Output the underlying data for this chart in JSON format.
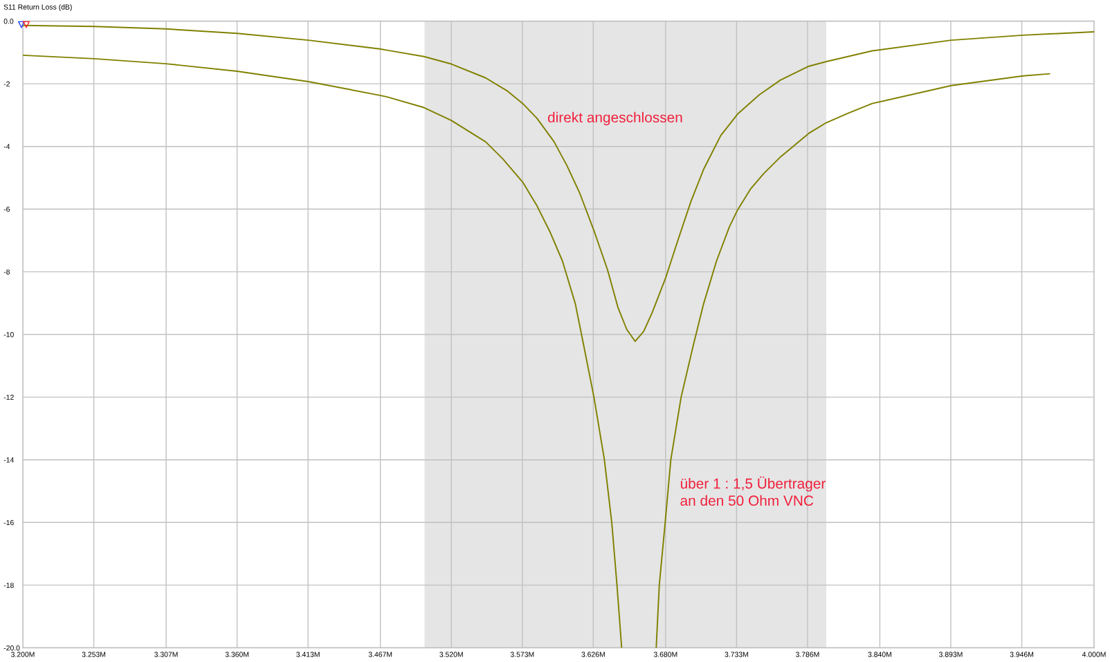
{
  "chart_data": {
    "type": "line",
    "ylabel": "S11 Return Loss (dB)",
    "xlim": [
      3.2,
      4.0
    ],
    "xticks": [
      {
        "value": 3.2,
        "label": "3.200M"
      },
      {
        "value": 3.253,
        "label": "3.253M"
      },
      {
        "value": 3.307,
        "label": "3.307M"
      },
      {
        "value": 3.36,
        "label": "3.360M"
      },
      {
        "value": 3.413,
        "label": "3.413M"
      },
      {
        "value": 3.467,
        "label": "3.467M"
      },
      {
        "value": 3.52,
        "label": "3.520M"
      },
      {
        "value": 3.573,
        "label": "3.573M"
      },
      {
        "value": 3.626,
        "label": "3.626M"
      },
      {
        "value": 3.68,
        "label": "3.680M"
      },
      {
        "value": 3.733,
        "label": "3.733M"
      },
      {
        "value": 3.786,
        "label": "3.786M"
      },
      {
        "value": 3.84,
        "label": "3.840M"
      },
      {
        "value": 3.893,
        "label": "3.893M"
      },
      {
        "value": 3.946,
        "label": "3.946M"
      },
      {
        "value": 4.0,
        "label": "4.000M"
      }
    ],
    "ylim": [
      -20,
      0
    ],
    "yticks": [
      {
        "value": 0,
        "label": "0.0"
      },
      -2,
      -4,
      -6,
      -8,
      -10,
      -12,
      -14,
      -16,
      -18,
      {
        "value": -20,
        "label": "-20.0"
      }
    ],
    "grid": true,
    "bands": [
      {
        "axis": "x",
        "from": 3.5,
        "to": 3.8,
        "color": "#e5e5e5"
      }
    ],
    "series": [
      {
        "color": "#808000",
        "x": [
          3.2,
          3.2533,
          3.3067,
          3.36,
          3.4133,
          3.4667,
          3.4721,
          3.4996,
          3.52,
          3.5455,
          3.5615,
          3.5733,
          3.5839,
          3.5967,
          3.6062,
          3.6158,
          3.6267,
          3.6366,
          3.6446,
          3.651,
          3.6573,
          3.6637,
          3.6701,
          3.68,
          3.6893,
          3.6989,
          3.7084,
          3.7212,
          3.7337,
          3.75,
          3.7659,
          3.787,
          3.8001,
          3.8343,
          3.8932,
          3.9469,
          4.0
        ],
        "values": [
          -0.14,
          -0.17,
          -0.25,
          -0.39,
          -0.61,
          -0.89,
          -0.93,
          -1.13,
          -1.37,
          -1.81,
          -2.22,
          -2.63,
          -3.1,
          -3.85,
          -4.6,
          -5.48,
          -6.71,
          -7.93,
          -9.16,
          -9.84,
          -10.22,
          -9.9,
          -9.29,
          -8.2,
          -6.98,
          -5.76,
          -4.73,
          -3.65,
          -2.97,
          -2.35,
          -1.88,
          -1.44,
          -1.29,
          -0.95,
          -0.61,
          -0.45,
          -0.34
        ]
      },
      {
        "color": "#808000",
        "x": [
          3.2,
          3.2533,
          3.3067,
          3.36,
          3.4133,
          3.4667,
          3.4721,
          3.4996,
          3.52,
          3.5455,
          3.5583,
          3.5733,
          3.5839,
          3.5935,
          3.603,
          3.6126,
          3.619,
          3.6265,
          3.6343,
          3.6398,
          3.6437,
          3.6472,
          3.66,
          3.673,
          3.6753,
          3.6797,
          3.6839,
          3.6916,
          3.7005,
          3.7084,
          3.718,
          3.7276,
          3.7337,
          3.7436,
          3.7532,
          3.7659,
          3.787,
          3.8001,
          3.817,
          3.8343,
          3.8932,
          3.9469,
          3.9668
        ],
        "values": [
          -1.09,
          -1.2,
          -1.36,
          -1.6,
          -1.93,
          -2.37,
          -2.42,
          -2.76,
          -3.17,
          -3.85,
          -4.39,
          -5.14,
          -5.89,
          -6.71,
          -7.66,
          -9.02,
          -10.38,
          -12.0,
          -14.0,
          -16.0,
          -18.0,
          -20.0,
          null,
          -20.0,
          -18.0,
          -16.0,
          -14.0,
          -12.0,
          -10.38,
          -9.02,
          -7.66,
          -6.57,
          -6.03,
          -5.35,
          -4.87,
          -4.33,
          -3.58,
          -3.24,
          -2.93,
          -2.63,
          -2.06,
          -1.75,
          -1.68
        ]
      }
    ],
    "annotations": [
      "direkt angeschlossen",
      "über 1 : 1,5 Übertrager\nan den 50 Ohm VNC"
    ]
  }
}
